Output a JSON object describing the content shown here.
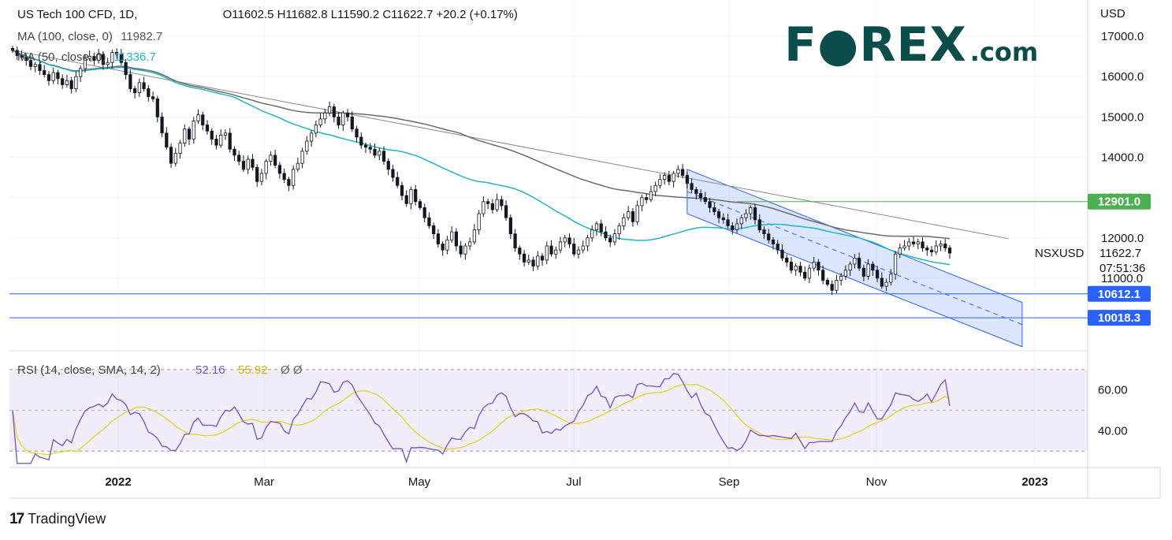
{
  "header": {
    "symbol_line": "US Tech 100 CFD, 1D,",
    "open": "O11602.5",
    "high": "H11682.8",
    "low": "L11590.2",
    "close": "C11622.7",
    "change": "+20.2 (+0.17%)",
    "ma100_label": "MA (100, close, 0)",
    "ma100_value": "11982.7",
    "ma50_label": "MA (50, close, 0)",
    "ma50_value": "11336.7"
  },
  "logo": {
    "brand": "F●REX",
    "suffix": ".com"
  },
  "footer": {
    "brand": "TradingView",
    "mark": "17"
  },
  "colors": {
    "up": "#26a69a",
    "down": "#131722",
    "ma50": "#22b5c2",
    "ma100": "#6b6b6b",
    "rsi": "#7e57c2",
    "rsi_ma": "#e5d21a",
    "line": "#2962ff",
    "level_green": "#3a8a3a",
    "grid": "#eceef2"
  },
  "chart_data": [
    {
      "type": "candlestick",
      "title": "US Tech 100 CFD, 1D",
      "symbol": "NSXUSD",
      "price_axis": {
        "currency": "USD",
        "ticks": [
          11000,
          12000,
          13000,
          14000,
          15000,
          16000,
          17000
        ],
        "tick_labels": [
          "11000.0",
          "12000.0",
          "13000.0",
          "14000.0",
          "15000.0",
          "16000.0",
          "17000.0"
        ],
        "range": [
          9200,
          17900
        ]
      },
      "time_axis": {
        "labels": [
          "2022",
          "Mar",
          "May",
          "Jul",
          "Sep",
          "Nov",
          "2023"
        ]
      },
      "current": {
        "price": 11622.7,
        "label": "11622.7",
        "countdown": "07:51:36"
      },
      "levels": [
        {
          "value": 12901.0,
          "label": "12901.0",
          "color": "#4caf50"
        },
        {
          "value": 10612.1,
          "label": "10612.1",
          "color": "#2962ff"
        },
        {
          "value": 10018.3,
          "label": "10018.3",
          "color": "#2962ff"
        }
      ],
      "ma100_last": 11982.7,
      "ma50_last": 11336.7,
      "closes": [
        16650,
        16520,
        16480,
        16400,
        16250,
        16300,
        16150,
        16050,
        15900,
        16100,
        15950,
        15800,
        15900,
        15700,
        16000,
        16200,
        16450,
        16500,
        16400,
        16550,
        16300,
        16350,
        16600,
        16550,
        16350,
        16050,
        15700,
        15600,
        15850,
        15700,
        15500,
        15450,
        15000,
        14600,
        14250,
        13850,
        14100,
        14350,
        14700,
        14450,
        14900,
        15050,
        14800,
        14650,
        14450,
        14300,
        14550,
        14600,
        14200,
        14050,
        13900,
        13700,
        13950,
        13750,
        13400,
        13600,
        13900,
        14050,
        13800,
        13600,
        13450,
        13300,
        13700,
        13850,
        14150,
        14400,
        14600,
        14800,
        14950,
        15100,
        15250,
        15000,
        14800,
        15100,
        15000,
        14700,
        14500,
        14300,
        14250,
        14200,
        14050,
        14150,
        13900,
        13700,
        13500,
        13300,
        13050,
        12850,
        13200,
        12900,
        12750,
        12500,
        12300,
        12100,
        11850,
        11700,
        11950,
        12150,
        11800,
        11600,
        11800,
        11900,
        12200,
        12600,
        12900,
        12850,
        12700,
        12950,
        12800,
        12500,
        12100,
        11750,
        11600,
        11400,
        11450,
        11300,
        11550,
        11450,
        11800,
        11600,
        11700,
        11900,
        12000,
        11850,
        11600,
        11700,
        11800,
        12000,
        12200,
        12350,
        12150,
        12000,
        11900,
        12100,
        12300,
        12500,
        12650,
        12400,
        12800,
        13000,
        12950,
        13150,
        13300,
        13450,
        13550,
        13400,
        13600,
        13700,
        13550,
        13350,
        13200,
        13100,
        13000,
        12900,
        12750,
        12650,
        12500,
        12450,
        12300,
        12200,
        12350,
        12500,
        12600,
        12750,
        12450,
        12200,
        12100,
        11950,
        11850,
        11700,
        11500,
        11400,
        11200,
        11300,
        11150,
        11000,
        11250,
        11400,
        11200,
        10950,
        10850,
        10700,
        10950,
        11050,
        11200,
        11350,
        11500,
        11250,
        11050,
        11350,
        11200,
        11000,
        10800,
        10900,
        11100,
        11600,
        11750,
        11800,
        11900,
        11850,
        11900,
        11750,
        11700,
        11650,
        11800,
        11850,
        11750,
        11622.7
      ],
      "rsi": {
        "label": "RSI (14, close, SMA, 14, 2)",
        "value": "52.16",
        "sma_value": "55.92",
        "na_marks": "Ø Ø",
        "ticks": [
          40,
          60
        ],
        "tick_labels": [
          "40.00",
          "60.00"
        ],
        "band": [
          30,
          70
        ],
        "range": [
          22,
          78
        ]
      }
    }
  ]
}
